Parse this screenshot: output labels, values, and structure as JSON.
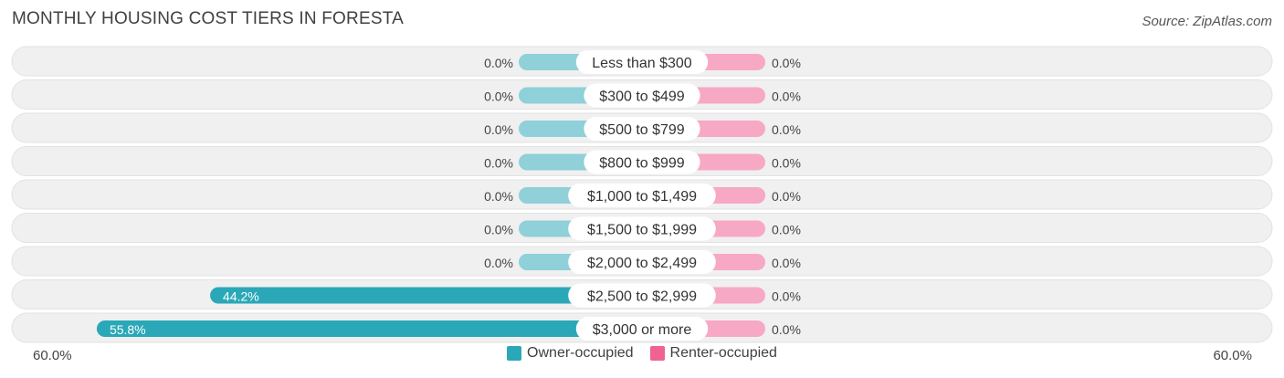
{
  "title": "MONTHLY HOUSING COST TIERS IN FORESTA",
  "source": "Source: ZipAtlas.com",
  "colors": {
    "owner": "#2aa8b8",
    "owner_light": "#8fd0d9",
    "renter": "#f06292",
    "renter_light": "#f7a8c4",
    "row_bg": "#f0f0f0"
  },
  "axis": {
    "left_label": "60.0%",
    "right_label": "60.0%"
  },
  "legend": [
    {
      "label": "Owner-occupied",
      "color": "#2aa8b8"
    },
    {
      "label": "Renter-occupied",
      "color": "#f06292"
    }
  ],
  "chart_data": {
    "type": "bar",
    "orientation": "horizontal-diverging",
    "xlim": [
      -60,
      60
    ],
    "categories": [
      "Less than $300",
      "$300 to $499",
      "$500 to $799",
      "$800 to $999",
      "$1,000 to $1,499",
      "$1,500 to $1,999",
      "$2,000 to $2,499",
      "$2,500 to $2,999",
      "$3,000 or more"
    ],
    "series": [
      {
        "name": "Owner-occupied",
        "values": [
          0.0,
          0.0,
          0.0,
          0.0,
          0.0,
          0.0,
          0.0,
          44.2,
          55.8
        ],
        "labels": [
          "0.0%",
          "0.0%",
          "0.0%",
          "0.0%",
          "0.0%",
          "0.0%",
          "0.0%",
          "44.2%",
          "55.8%"
        ]
      },
      {
        "name": "Renter-occupied",
        "values": [
          0.0,
          0.0,
          0.0,
          0.0,
          0.0,
          0.0,
          0.0,
          0.0,
          0.0
        ],
        "labels": [
          "0.0%",
          "0.0%",
          "0.0%",
          "0.0%",
          "0.0%",
          "0.0%",
          "0.0%",
          "0.0%",
          "0.0%"
        ]
      }
    ]
  }
}
